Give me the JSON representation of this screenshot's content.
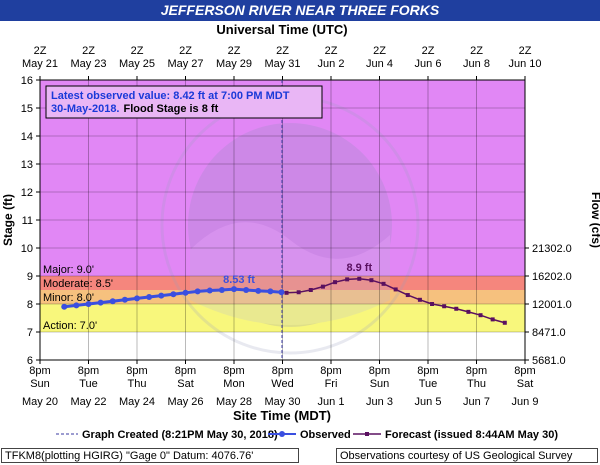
{
  "header": {
    "title": "JEFFERSON RIVER NEAR THREE FORKS"
  },
  "top_axis": {
    "label": "Universal Time (UTC)",
    "ticks": [
      {
        "line1": "2Z",
        "line2": "May 21"
      },
      {
        "line1": "2Z",
        "line2": "May 23"
      },
      {
        "line1": "2Z",
        "line2": "May 25"
      },
      {
        "line1": "2Z",
        "line2": "May 27"
      },
      {
        "line1": "2Z",
        "line2": "May 29"
      },
      {
        "line1": "2Z",
        "line2": "May 31"
      },
      {
        "line1": "2Z",
        "line2": "Jun 2"
      },
      {
        "line1": "2Z",
        "line2": "Jun 4"
      },
      {
        "line1": "2Z",
        "line2": "Jun 6"
      },
      {
        "line1": "2Z",
        "line2": "Jun 8"
      },
      {
        "line1": "2Z",
        "line2": "Jun 10"
      }
    ]
  },
  "bottom_axis": {
    "label": "Site Time (MDT)",
    "ticks": [
      {
        "line1": "8pm",
        "line2": "Sun",
        "line3": "May 20"
      },
      {
        "line1": "8pm",
        "line2": "Tue",
        "line3": "May 22"
      },
      {
        "line1": "8pm",
        "line2": "Thu",
        "line3": "May 24"
      },
      {
        "line1": "8pm",
        "line2": "Sat",
        "line3": "May 26"
      },
      {
        "line1": "8pm",
        "line2": "Mon",
        "line3": "May 28"
      },
      {
        "line1": "8pm",
        "line2": "Wed",
        "line3": "May 30"
      },
      {
        "line1": "8pm",
        "line2": "Fri",
        "line3": "Jun 1"
      },
      {
        "line1": "8pm",
        "line2": "Sun",
        "line3": "Jun 3"
      },
      {
        "line1": "8pm",
        "line2": "Tue",
        "line3": "Jun 5"
      },
      {
        "line1": "8pm",
        "line2": "Thu",
        "line3": "Jun 7"
      },
      {
        "line1": "8pm",
        "line2": "Sat",
        "line3": "Jun 9"
      }
    ]
  },
  "left_axis": {
    "label": "Stage (ft)",
    "ticks": [
      "6",
      "7",
      "8",
      "9",
      "10",
      "11",
      "12",
      "13",
      "14",
      "15",
      "16"
    ]
  },
  "right_axis": {
    "label": "Flow (cfs)",
    "ticks": [
      {
        "stage": 6,
        "label": "5681.0"
      },
      {
        "stage": 7,
        "label": "8471.0"
      },
      {
        "stage": 8,
        "label": "12001.0"
      },
      {
        "stage": 9,
        "label": "16202.0"
      },
      {
        "stage": 10,
        "label": "21302.0"
      }
    ]
  },
  "info_box": {
    "line1": "Latest observed value: 8.42 ft at 7:00 PM MDT",
    "line2_date": "30-May-2018.",
    "line2_flood": "Flood Stage is 8 ft"
  },
  "stage_bands": {
    "major": {
      "label": "Major: 9.0'",
      "from": 9.0,
      "to": 16.0,
      "color": "#e187f5"
    },
    "moderate": {
      "label": "Moderate: 8.5'",
      "from": 8.5,
      "to": 9.0,
      "color": "#f5867d"
    },
    "minor": {
      "label": "Minor: 8.0'",
      "from": 8.0,
      "to": 8.5,
      "color": "#f6c17e"
    },
    "action": {
      "label": "Action: 7.0'",
      "from": 7.0,
      "to": 8.0,
      "color": "#f8f77c"
    },
    "normal": {
      "from": 6.0,
      "to": 7.0,
      "color": "#ffffff"
    }
  },
  "annotations": {
    "observed_max": "8.53 ft",
    "forecast_max": "8.9 ft"
  },
  "legend": {
    "created": "Graph Created (8:21PM May 30, 2018)",
    "observed": "Observed",
    "forecast": "Forecast (issued 8:44AM May 30)"
  },
  "footer": {
    "left": "TFKM8(plotting HGIRG) \"Gage 0\" Datum: 4076.76'",
    "right": "Observations courtesy of US Geological Survey"
  },
  "colors": {
    "observed": "#3a4fe0",
    "forecast": "#5a1060",
    "title_bar": "#1f3f9f",
    "info_text": "#1a3ad8"
  },
  "chart_data": {
    "type": "line",
    "title": "JEFFERSON RIVER NEAR THREE FORKS",
    "xlabel": "Site Time (MDT)",
    "ylabel": "Stage (ft)",
    "y2label": "Flow (cfs)",
    "ylim": [
      6,
      16
    ],
    "xlim": [
      "2018-05-20T20:00",
      "2018-06-09T20:00"
    ],
    "grid": true,
    "legend_position": "bottom",
    "series": [
      {
        "name": "Observed",
        "x": [
          "2018-05-21T20:00",
          "2018-05-22T08:00",
          "2018-05-22T20:00",
          "2018-05-23T08:00",
          "2018-05-23T20:00",
          "2018-05-24T08:00",
          "2018-05-24T20:00",
          "2018-05-25T08:00",
          "2018-05-25T20:00",
          "2018-05-26T08:00",
          "2018-05-26T20:00",
          "2018-05-27T08:00",
          "2018-05-27T20:00",
          "2018-05-28T08:00",
          "2018-05-28T20:00",
          "2018-05-29T08:00",
          "2018-05-29T20:00",
          "2018-05-30T08:00",
          "2018-05-30T19:00"
        ],
        "values": [
          7.9,
          7.95,
          8.0,
          8.05,
          8.1,
          8.15,
          8.2,
          8.25,
          8.3,
          8.35,
          8.4,
          8.45,
          8.48,
          8.5,
          8.53,
          8.5,
          8.47,
          8.45,
          8.42
        ]
      },
      {
        "name": "Forecast",
        "x": [
          "2018-05-31T00:00",
          "2018-05-31T12:00",
          "2018-06-01T00:00",
          "2018-06-01T12:00",
          "2018-06-02T00:00",
          "2018-06-02T12:00",
          "2018-06-03T00:00",
          "2018-06-03T12:00",
          "2018-06-04T00:00",
          "2018-06-04T12:00",
          "2018-06-05T00:00",
          "2018-06-05T12:00",
          "2018-06-06T00:00",
          "2018-06-06T12:00",
          "2018-06-07T00:00",
          "2018-06-07T12:00",
          "2018-06-08T00:00",
          "2018-06-08T12:00",
          "2018-06-09T00:00"
        ],
        "values": [
          8.4,
          8.42,
          8.5,
          8.62,
          8.78,
          8.88,
          8.9,
          8.85,
          8.72,
          8.52,
          8.32,
          8.15,
          8.0,
          7.92,
          7.83,
          7.72,
          7.6,
          7.45,
          7.33
        ]
      }
    ]
  }
}
